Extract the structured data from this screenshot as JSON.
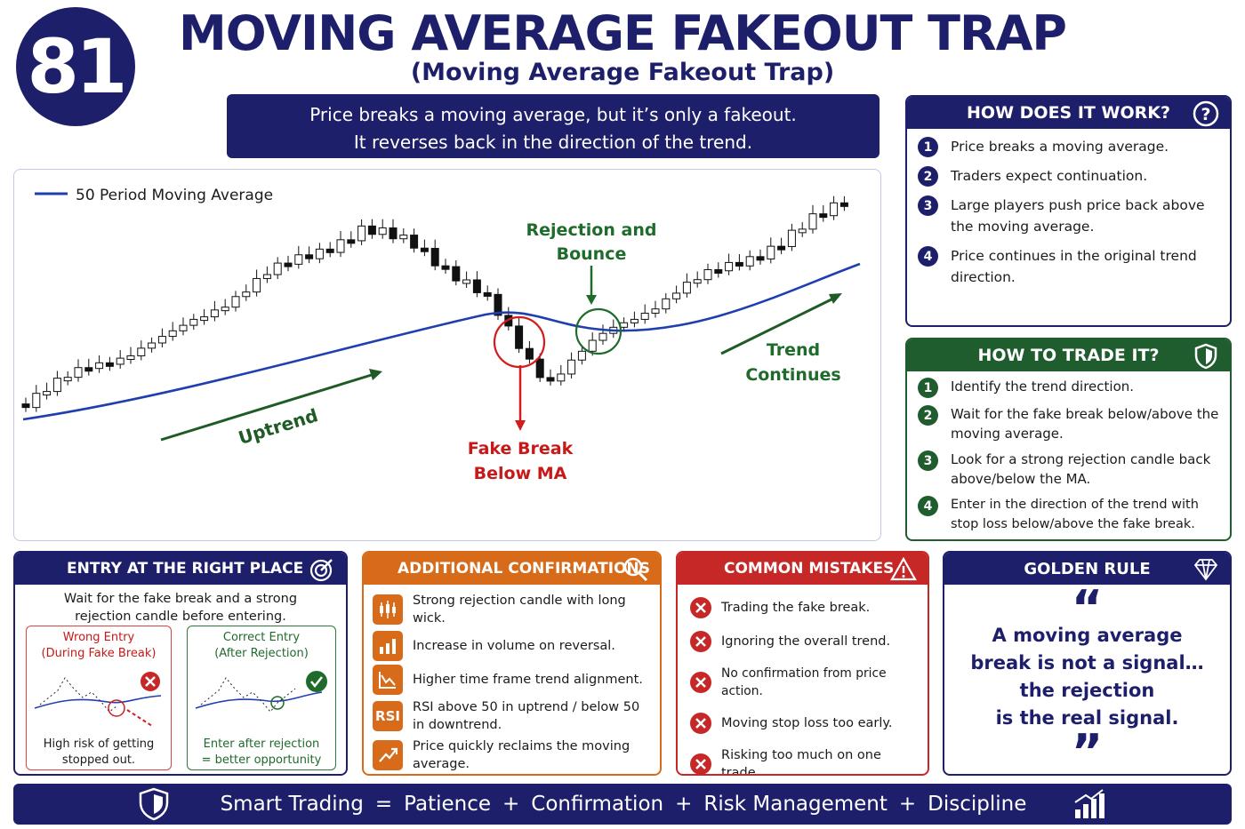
{
  "badge": "81",
  "header": {
    "title": "MOVING AVERAGE FAKEOUT TRAP",
    "subtitle": "(Moving Average Fakeout Trap)"
  },
  "banner": {
    "lines": [
      "Price breaks a moving average, but it’s only a fakeout.",
      "It reverses back in the direction of the trend."
    ]
  },
  "illustration": {
    "legend": "50 Period Moving Average",
    "uptrend": "Uptrend",
    "rejection": [
      "Rejection and",
      "Bounce"
    ],
    "fake_break": [
      "Fake Break",
      "Below MA"
    ],
    "trend_continues": [
      "Trend",
      "Continues"
    ]
  },
  "how_it_works": {
    "title": "HOW DOES IT WORK?",
    "steps": [
      {
        "number": 1,
        "text": "Price breaks a moving average."
      },
      {
        "number": 2,
        "text": "Traders expect continuation."
      },
      {
        "number": 3,
        "text": "Large players push price back above the moving average."
      },
      {
        "number": 4,
        "text": "Price continues in the original trend direction."
      }
    ]
  },
  "how_to_trade": {
    "title": "HOW TO TRADE IT?",
    "steps": [
      {
        "number": 1,
        "text": "Identify the trend direction."
      },
      {
        "number": 2,
        "text": "Wait for the fake break below/above the moving average."
      },
      {
        "number": 3,
        "text": "Look for a strong rejection candle back above/below the MA."
      },
      {
        "number": 4,
        "text": "Enter in the direction of the trend with stop loss below/above the fake break."
      }
    ]
  },
  "entry": {
    "title": "ENTRY AT THE RIGHT PLACE",
    "description": "Wait for the fake break and a strong rejection candle before entering.",
    "wrong": {
      "title": [
        "Wrong Entry",
        "(During Fake Break)"
      ],
      "caption": [
        "High risk of getting",
        "stopped out."
      ]
    },
    "correct": {
      "title": [
        "Correct Entry",
        "(After Rejection)"
      ],
      "caption": [
        "Enter after rejection",
        "= better opportunity"
      ]
    }
  },
  "confirmations": {
    "title": "ADDITIONAL CONFIRMATIONS",
    "items": [
      {
        "text": "Strong rejection candle with long wick."
      },
      {
        "text": "Increase in volume on reversal."
      },
      {
        "text": "Higher time frame trend alignment."
      },
      {
        "icon_label": "RSI",
        "text": "RSI above 50 in uptrend / below 50 in downtrend."
      },
      {
        "text": "Price quickly reclaims the moving average."
      }
    ]
  },
  "mistakes": {
    "title": "COMMON MISTAKES",
    "items": [
      "Trading the fake break.",
      "Ignoring the overall trend.",
      "No confirmation from price action.",
      "Moving stop loss too early.",
      "Risking too much on one trade."
    ]
  },
  "golden_rule": {
    "title": "GOLDEN RULE",
    "open_quote": "“",
    "close_quote": "”",
    "lines": [
      "A moving average",
      "break is not a signal…",
      "the rejection",
      "is the real signal."
    ]
  },
  "footer": {
    "items": [
      "Smart Trading",
      "=",
      "Patience",
      "+",
      "Confirmation",
      "+",
      "Risk Management",
      "+",
      "Discipline"
    ]
  }
}
